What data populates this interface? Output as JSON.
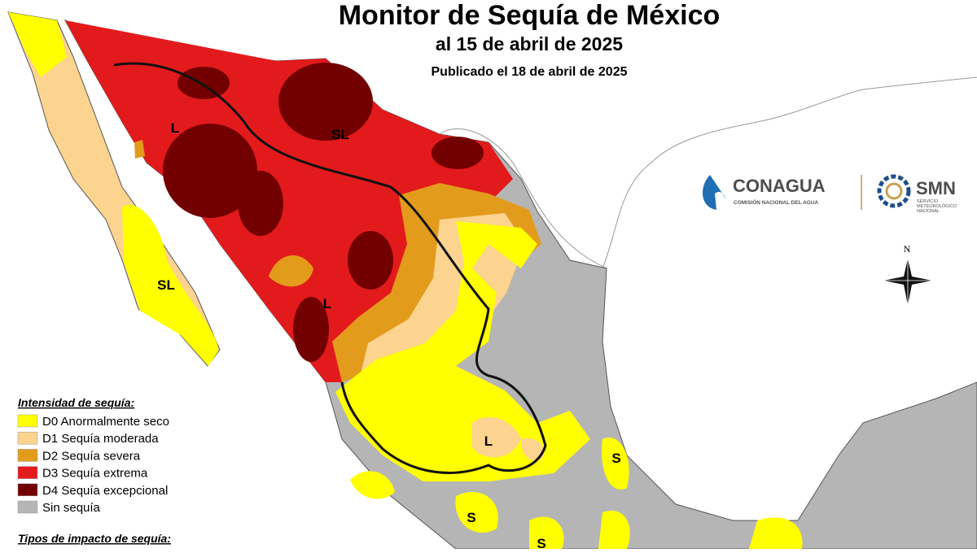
{
  "header": {
    "title": "Monitor de Sequía de México",
    "subtitle": "al 15 de abril de 2025",
    "published": "Publicado el 18 de abril de 2025"
  },
  "logos": {
    "conagua": {
      "name": "CONAGUA",
      "tagline": "COMISIÓN NACIONAL DEL AGUA"
    },
    "smn": {
      "name": "SMN",
      "tagline": [
        "SERVICIO",
        "METEOROLÓGICO",
        "NACIONAL"
      ]
    }
  },
  "compass": "N",
  "legend": {
    "title": "Intensidad de sequía:",
    "items": [
      {
        "label": "D0 Anormalmente seco",
        "color": "#ffff00"
      },
      {
        "label": "D1 Sequía moderada",
        "color": "#fcd38f"
      },
      {
        "label": "D2 Sequía severa",
        "color": "#e39b1c"
      },
      {
        "label": "D3 Sequía extrema",
        "color": "#e31a1c"
      },
      {
        "label": "D4 Sequía excepcional",
        "color": "#730000"
      },
      {
        "label": "Sin sequía",
        "color": "#b5b5b5"
      }
    ],
    "impact_title": "Tipos de impacto de sequía:"
  },
  "map_labels": [
    "L",
    "SL",
    "SL",
    "L",
    "L",
    "S",
    "S",
    "S"
  ]
}
